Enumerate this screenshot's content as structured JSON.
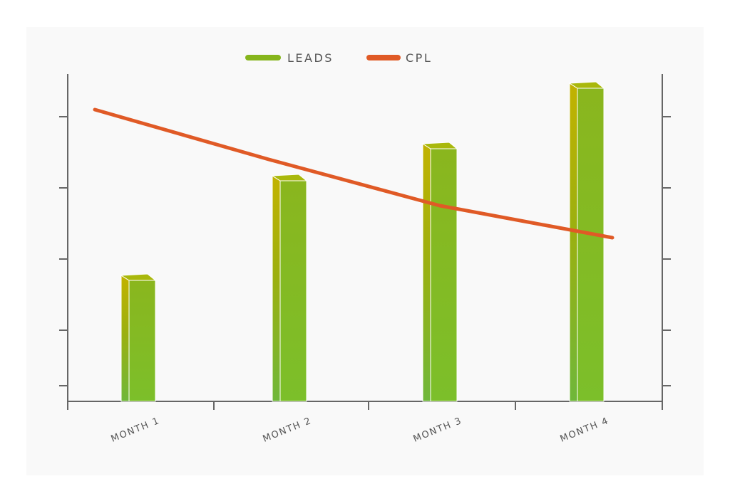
{
  "chart_data": {
    "type": "bar",
    "categories": [
      "MONTH 1",
      "MONTH 2",
      "MONTH 3",
      "MONTH 4"
    ],
    "series": [
      {
        "name": "LEADS",
        "type": "bar",
        "axis": "left",
        "color": "#86b51c",
        "values": [
          34,
          62,
          71,
          88
        ]
      },
      {
        "name": "CPL",
        "type": "line",
        "axis": "right",
        "color": "#e05a26",
        "values": [
          82,
          68,
          55,
          46
        ]
      }
    ],
    "y_left_range": [
      0,
      100
    ],
    "y_right_range": [
      0,
      100
    ],
    "y_tick_labels_shown": false,
    "grid": false,
    "legend_position": "top-center",
    "three_d_bars": true
  }
}
